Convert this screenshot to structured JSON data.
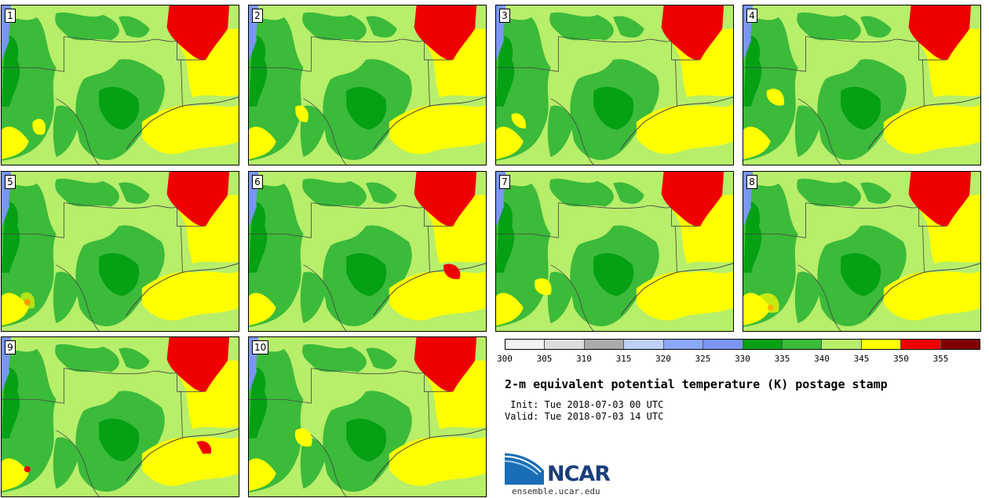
{
  "title": "2-m equivalent potential temperature (K) postage stamp",
  "init_label": " Init: Tue 2018-07-03 00 UTC",
  "valid_label": "Valid: Tue 2018-07-03 14 UTC",
  "panels": [
    {
      "label": "1"
    },
    {
      "label": "2"
    },
    {
      "label": "3"
    },
    {
      "label": "4"
    },
    {
      "label": "5"
    },
    {
      "label": "6"
    },
    {
      "label": "7"
    },
    {
      "label": "8"
    },
    {
      "label": "9"
    },
    {
      "label": "10"
    }
  ],
  "colorbar": {
    "colors": [
      "#f2f2f2",
      "#dddddd",
      "#aaaaaa",
      "#bcd0f8",
      "#8aa8f8",
      "#7a96f2",
      "#05a014",
      "#3cba3a",
      "#b7ee6a",
      "#ffff00",
      "#ee0000",
      "#800000"
    ],
    "ticks": [
      "300",
      "305",
      "310",
      "315",
      "320",
      "325",
      "330",
      "335",
      "340",
      "345",
      "350",
      "355"
    ],
    "tick_values": [
      300,
      305,
      310,
      315,
      320,
      325,
      330,
      335,
      340,
      345,
      350,
      355
    ],
    "min": 300,
    "max": 360
  },
  "map_colors": {
    "lightgreen": "#b7ee6a",
    "green": "#3cba3a",
    "darkgreen": "#05a014",
    "yellow": "#ffff00",
    "red": "#ee0000",
    "blue": "#7a96f2",
    "border": "#444444"
  },
  "logo": {
    "text": "NCAR",
    "url": "ensemble.ucar.edu",
    "color": "#1a3e7a",
    "accent_color": "#3a88c8"
  }
}
